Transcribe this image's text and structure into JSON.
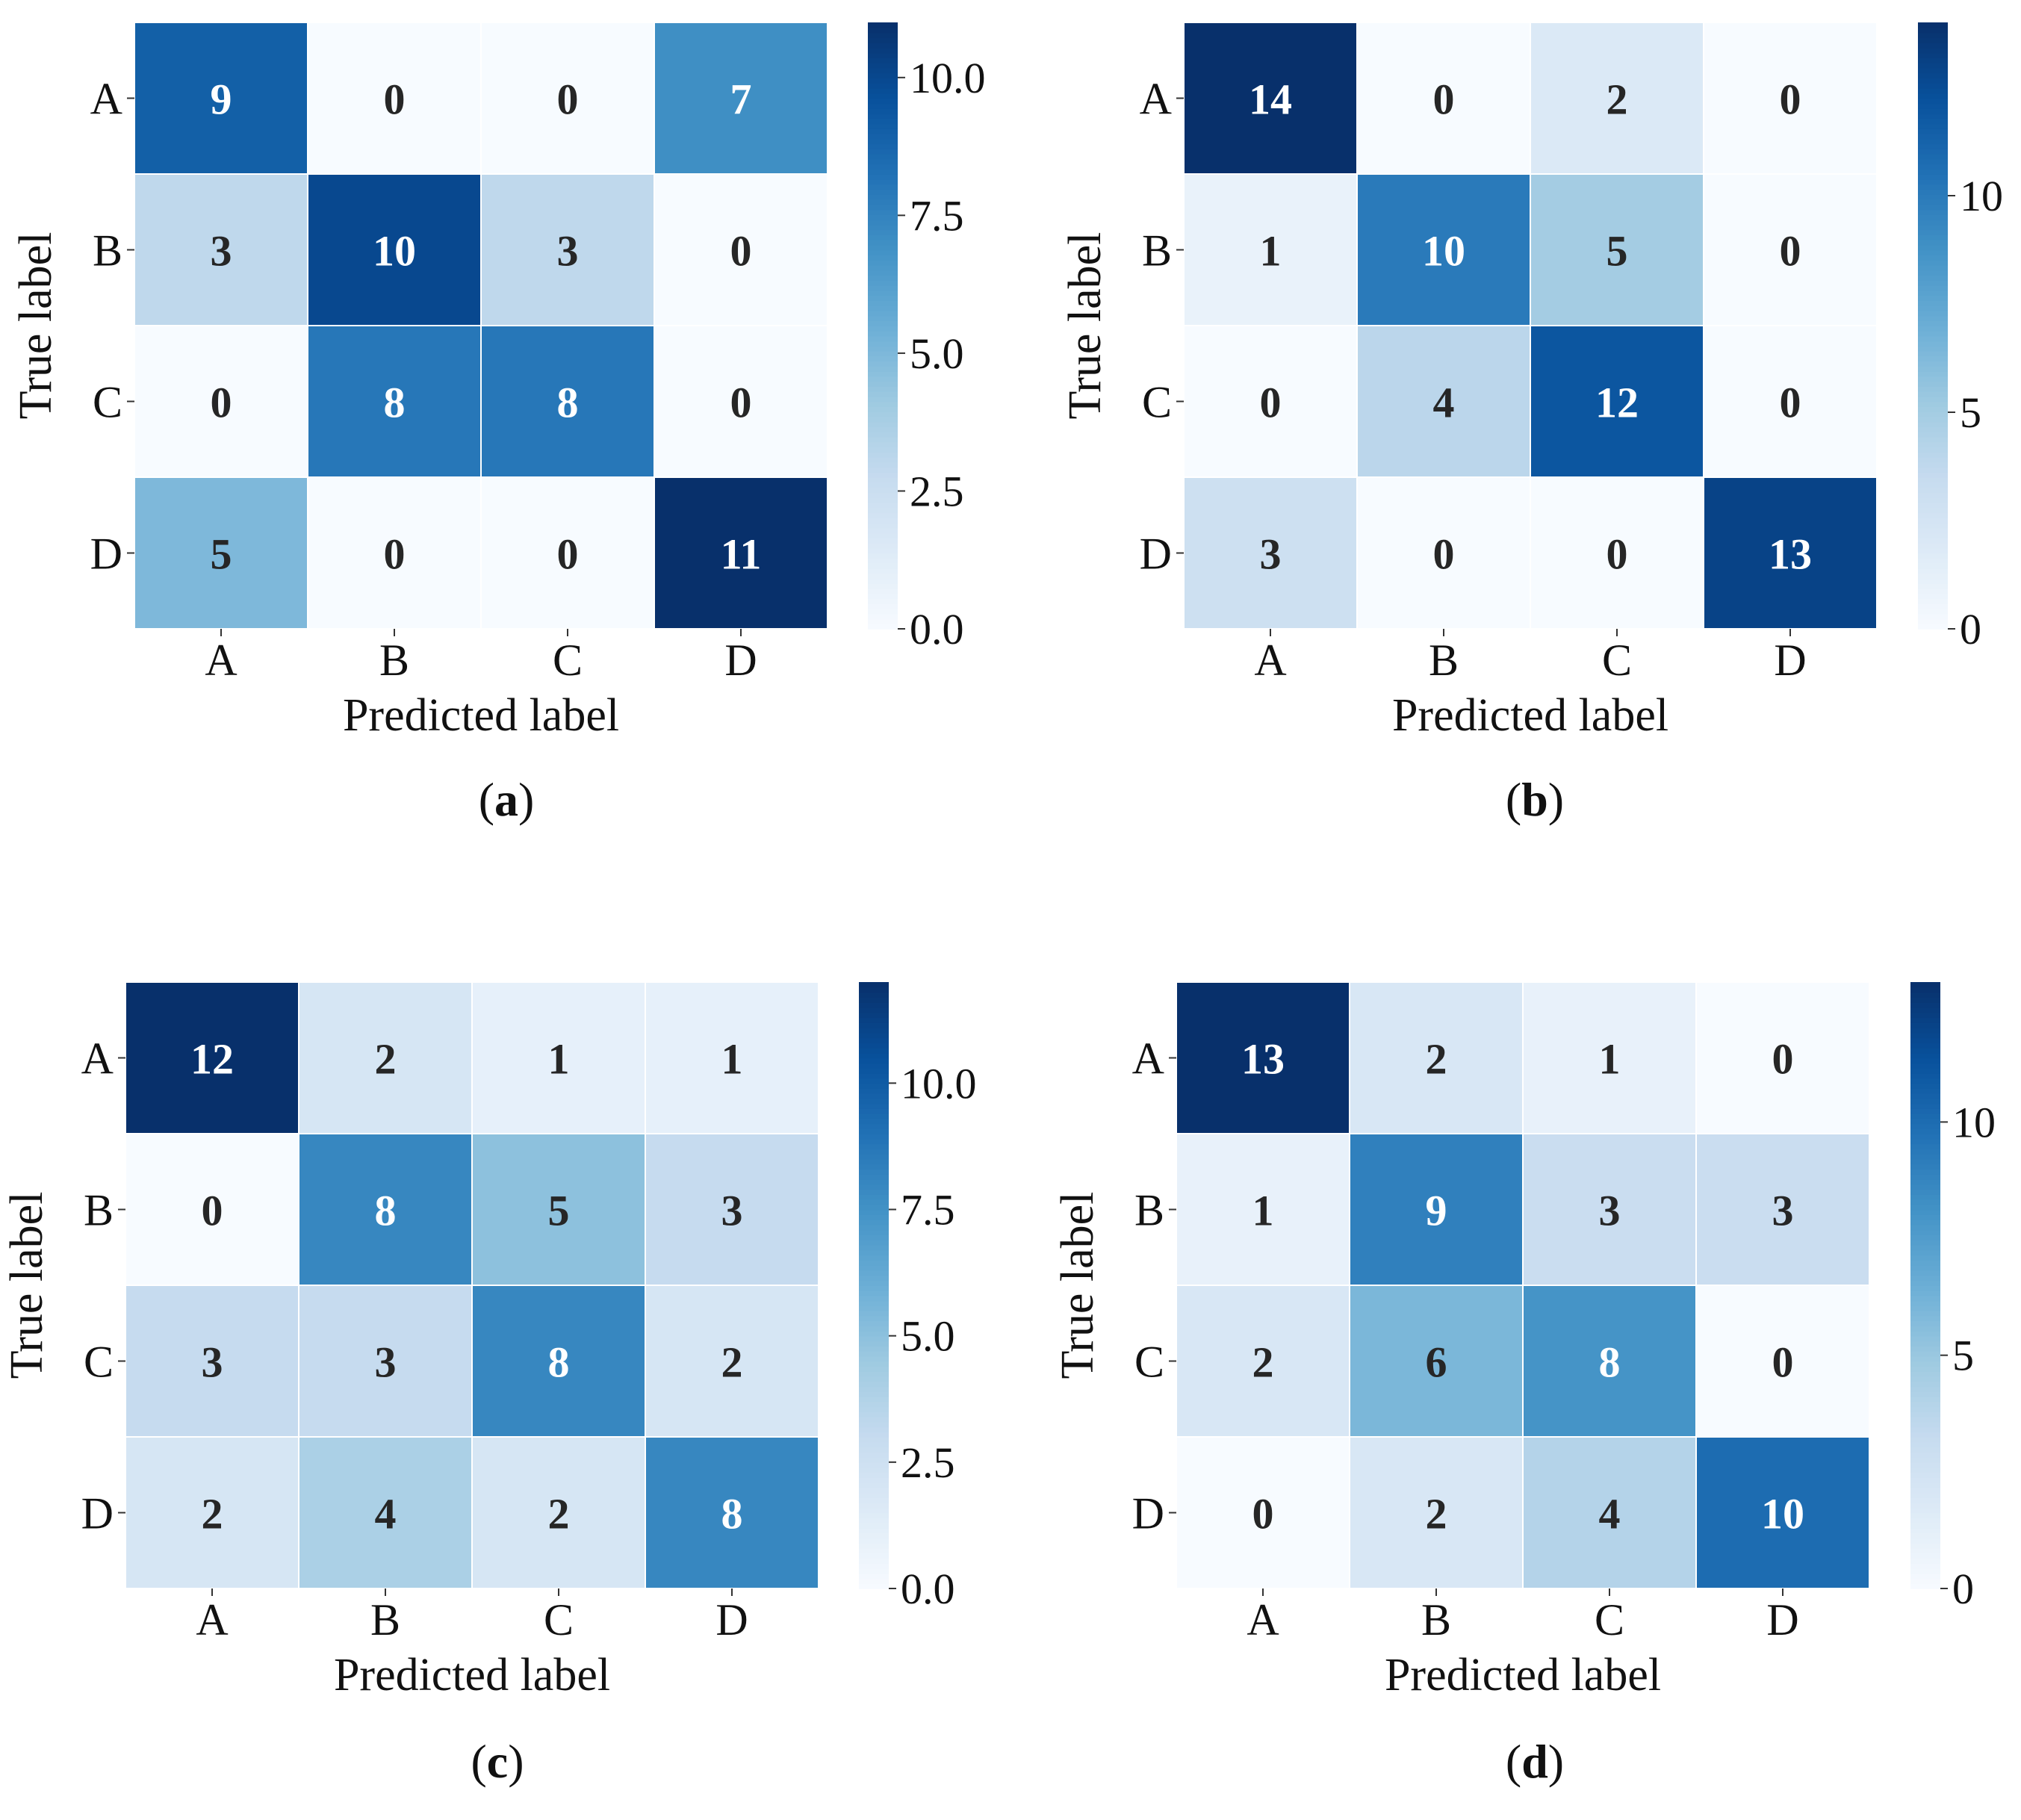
{
  "chart_data": [
    {
      "type": "heatmap",
      "panel_label": "a",
      "categories": [
        "A",
        "B",
        "C",
        "D"
      ],
      "row_categories": [
        "A",
        "B",
        "C",
        "D"
      ],
      "values": [
        [
          9,
          0,
          0,
          7
        ],
        [
          3,
          10,
          3,
          0
        ],
        [
          0,
          8,
          8,
          0
        ],
        [
          5,
          0,
          0,
          11
        ]
      ],
      "xlabel": "Predicted label",
      "ylabel": "True label",
      "colorbar": {
        "min": 0,
        "max": 11,
        "ticks": [
          0,
          2.5,
          5,
          7.5,
          10
        ],
        "tick_labels": [
          "0.0",
          "2.5",
          "5.0",
          "7.5",
          "10.0"
        ]
      },
      "colormap": "Blues"
    },
    {
      "type": "heatmap",
      "panel_label": "b",
      "categories": [
        "A",
        "B",
        "C",
        "D"
      ],
      "row_categories": [
        "A",
        "B",
        "C",
        "D"
      ],
      "values": [
        [
          14,
          0,
          2,
          0
        ],
        [
          1,
          10,
          5,
          0
        ],
        [
          0,
          4,
          12,
          0
        ],
        [
          3,
          0,
          0,
          13
        ]
      ],
      "xlabel": "Predicted label",
      "ylabel": "True label",
      "colorbar": {
        "min": 0,
        "max": 14,
        "ticks": [
          0,
          5,
          10
        ],
        "tick_labels": [
          "0",
          "5",
          "10"
        ]
      },
      "colormap": "Blues"
    },
    {
      "type": "heatmap",
      "panel_label": "c",
      "categories": [
        "A",
        "B",
        "C",
        "D"
      ],
      "row_categories": [
        "A",
        "B",
        "C",
        "D"
      ],
      "values": [
        [
          12,
          2,
          1,
          1
        ],
        [
          0,
          8,
          5,
          3
        ],
        [
          3,
          3,
          8,
          2
        ],
        [
          2,
          4,
          2,
          8
        ]
      ],
      "xlabel": "Predicted label",
      "ylabel": "True label",
      "colorbar": {
        "min": 0,
        "max": 12,
        "ticks": [
          0,
          2.5,
          5,
          7.5,
          10
        ],
        "tick_labels": [
          "0.0",
          "2.5",
          "5.0",
          "7.5",
          "10.0"
        ]
      },
      "colormap": "Blues"
    },
    {
      "type": "heatmap",
      "panel_label": "d",
      "categories": [
        "A",
        "B",
        "C",
        "D"
      ],
      "row_categories": [
        "A",
        "B",
        "C",
        "D"
      ],
      "values": [
        [
          13,
          2,
          1,
          0
        ],
        [
          1,
          9,
          3,
          3
        ],
        [
          2,
          6,
          8,
          0
        ],
        [
          0,
          2,
          4,
          10
        ]
      ],
      "xlabel": "Predicted label",
      "ylabel": "True label",
      "colorbar": {
        "min": 0,
        "max": 13,
        "ticks": [
          0,
          5,
          10
        ],
        "tick_labels": [
          "0",
          "5",
          "10"
        ]
      },
      "colormap": "Blues"
    }
  ]
}
